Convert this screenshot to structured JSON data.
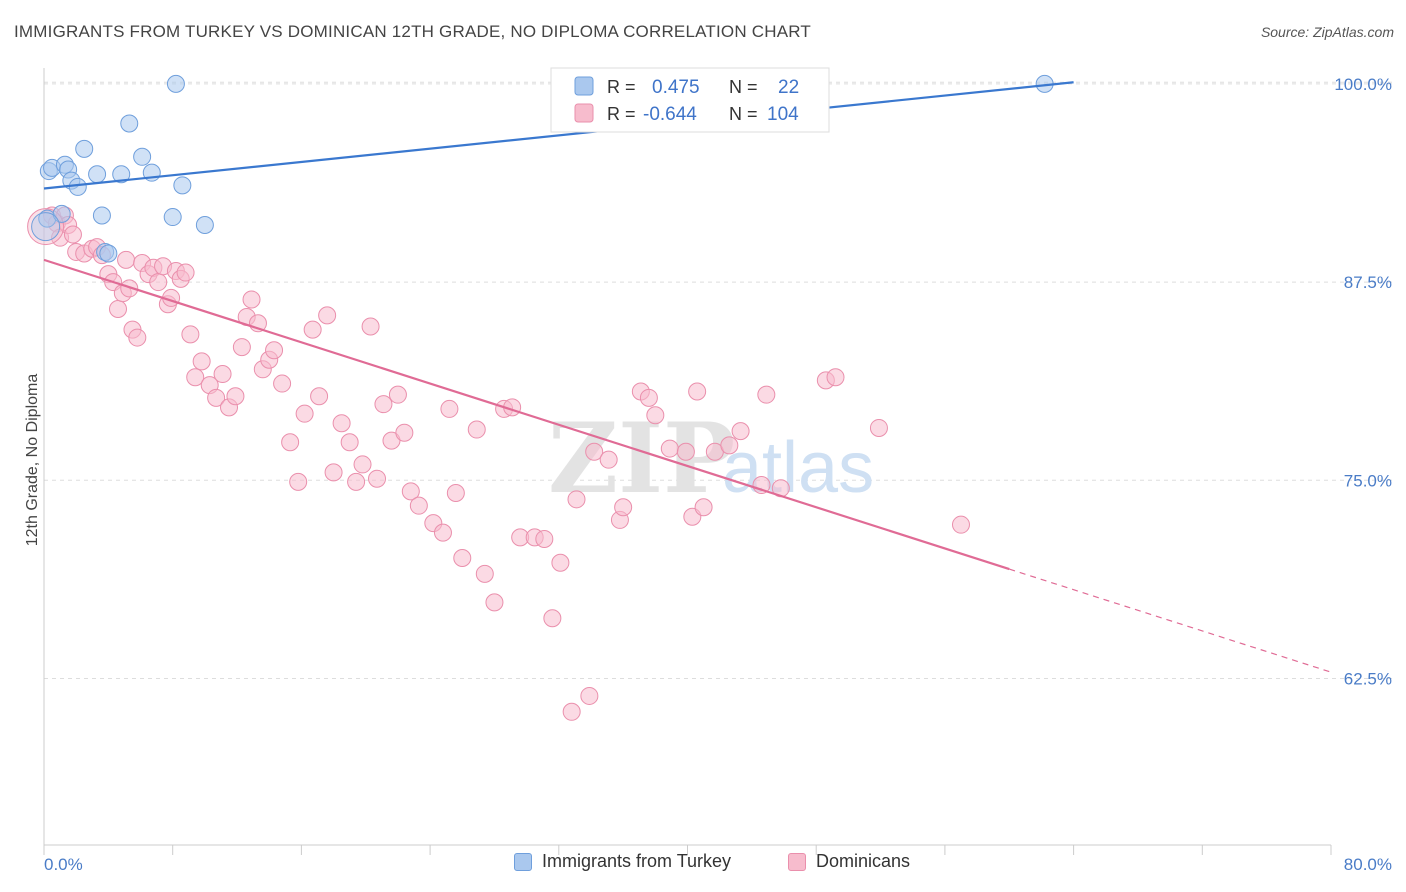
{
  "header": {
    "title": "IMMIGRANTS FROM TURKEY VS DOMINICAN 12TH GRADE, NO DIPLOMA CORRELATION CHART",
    "source": "Source: ZipAtlas.com"
  },
  "watermark": {
    "zip": "ZIP",
    "atlas": "atlas"
  },
  "colors": {
    "blue_fill": "#aac8ee",
    "blue_stroke": "#6f9fdc",
    "blue_line": "#3a78cf",
    "pink_fill": "#f7bccd",
    "pink_stroke": "#ea8fac",
    "pink_line": "#e06b95",
    "text_blue": "#3f74c9",
    "grid": "#dddddd"
  },
  "legend_top": [
    {
      "r_label": "R =",
      "r_value": "0.475",
      "n_label": "N =",
      "n_value": "22"
    },
    {
      "r_label": "R =",
      "r_value": "-0.644",
      "n_label": "N =",
      "n_value": "104"
    }
  ],
  "chart_data": {
    "type": "scatter",
    "title": "IMMIGRANTS FROM TURKEY VS DOMINICAN 12TH GRADE, NO DIPLOMA CORRELATION CHART",
    "xlabel": "",
    "ylabel": "12th Grade, No Diploma",
    "x_tick_labels": [
      "0.0%",
      "80.0%"
    ],
    "y_tick_labels": [
      "100.0%",
      "87.5%",
      "75.0%",
      "62.5%"
    ],
    "y_ticks": [
      100.0,
      87.5,
      75.0,
      62.5
    ],
    "xlim": [
      0,
      80
    ],
    "ylim": [
      52,
      101
    ],
    "grid": true,
    "legend_position": "bottom",
    "series": [
      {
        "name": "Immigrants from Turkey",
        "r": 0.475,
        "n": 22,
        "trend": {
          "x": [
            0,
            64
          ],
          "y": [
            93.4,
            100.1
          ]
        },
        "x": [
          0.3,
          0.5,
          1.3,
          1.5,
          1.7,
          2.1,
          2.5,
          3.3,
          3.6,
          3.8,
          4.8,
          5.3,
          6.1,
          6.7,
          8.0,
          8.2,
          8.6,
          10.0,
          62.2,
          0.2,
          1.1,
          4.0
        ],
        "y": [
          94.5,
          94.7,
          94.9,
          94.6,
          93.9,
          93.5,
          95.9,
          94.3,
          91.7,
          89.4,
          94.3,
          97.5,
          95.4,
          94.4,
          91.6,
          100.0,
          93.6,
          91.1,
          100.0,
          91.5,
          91.8,
          89.3
        ]
      },
      {
        "name": "Dominicans",
        "r": -0.644,
        "n": 104,
        "trend": {
          "x": [
            0,
            60
          ],
          "y": [
            88.9,
            69.4
          ]
        },
        "trend_dashed": {
          "x": [
            60,
            80
          ],
          "y": [
            69.4,
            62.9
          ]
        },
        "x": [
          0.5,
          0.8,
          1.0,
          1.3,
          1.5,
          1.8,
          2.0,
          2.5,
          3.0,
          3.3,
          3.6,
          4.0,
          4.3,
          4.6,
          4.9,
          5.1,
          5.3,
          5.5,
          5.8,
          6.1,
          6.5,
          6.8,
          7.1,
          7.4,
          7.7,
          7.9,
          8.2,
          8.5,
          8.8,
          9.1,
          9.4,
          9.8,
          10.3,
          10.7,
          11.1,
          11.5,
          11.9,
          12.3,
          12.6,
          12.9,
          13.3,
          13.6,
          14.0,
          14.3,
          14.8,
          15.3,
          15.8,
          16.2,
          16.7,
          17.1,
          17.6,
          18.0,
          18.5,
          19.0,
          19.4,
          19.8,
          20.3,
          20.7,
          21.1,
          21.6,
          22.0,
          22.4,
          22.8,
          23.3,
          24.2,
          24.8,
          25.2,
          25.6,
          26.0,
          26.9,
          27.4,
          28.0,
          28.6,
          29.1,
          29.6,
          30.5,
          31.1,
          31.6,
          32.1,
          32.8,
          33.1,
          33.9,
          34.2,
          35.1,
          35.8,
          36.0,
          37.1,
          37.6,
          38.0,
          38.9,
          39.9,
          40.3,
          40.6,
          41.0,
          41.7,
          42.6,
          43.3,
          44.6,
          44.9,
          45.8,
          48.6,
          49.2,
          51.9,
          57.0
        ],
        "y": [
          91.7,
          91.2,
          90.3,
          91.7,
          91.1,
          90.5,
          89.4,
          89.3,
          89.6,
          89.7,
          89.2,
          88.0,
          87.5,
          85.8,
          86.8,
          88.9,
          87.1,
          84.5,
          84.0,
          88.7,
          88.0,
          88.4,
          87.5,
          88.5,
          86.1,
          86.5,
          88.2,
          87.7,
          88.1,
          84.2,
          81.5,
          82.5,
          81.0,
          80.2,
          81.7,
          79.6,
          80.3,
          83.4,
          85.3,
          86.4,
          84.9,
          82.0,
          82.6,
          83.2,
          81.1,
          77.4,
          74.9,
          79.2,
          84.5,
          80.3,
          85.4,
          75.5,
          78.6,
          77.4,
          74.9,
          76.0,
          84.7,
          75.1,
          79.8,
          77.5,
          80.4,
          78.0,
          74.3,
          73.4,
          72.3,
          71.7,
          79.5,
          74.2,
          70.1,
          78.2,
          69.1,
          67.3,
          79.5,
          79.6,
          71.4,
          71.4,
          71.3,
          66.3,
          69.8,
          60.4,
          73.8,
          61.4,
          76.8,
          76.3,
          72.5,
          73.3,
          80.6,
          80.2,
          79.1,
          77.0,
          76.8,
          72.7,
          80.6,
          73.3,
          76.8,
          77.2,
          78.1,
          74.7,
          80.4,
          74.5,
          81.3,
          81.5,
          78.3,
          72.2
        ]
      }
    ]
  },
  "legend_bottom": [
    {
      "label": "Immigrants from Turkey"
    },
    {
      "label": "Dominicans"
    }
  ]
}
